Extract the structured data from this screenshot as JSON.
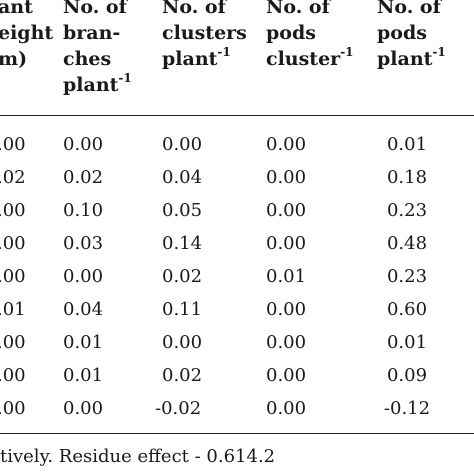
{
  "table": {
    "headers": [
      {
        "lines": [
          "ant",
          "eight",
          "m)"
        ],
        "sup": [
          "",
          "",
          ""
        ]
      },
      {
        "lines": [
          "No. of",
          "bran-",
          "ches",
          "plant"
        ],
        "sup": [
          "",
          "",
          "",
          "-1"
        ]
      },
      {
        "lines": [
          "No. of",
          "clusters",
          "plant"
        ],
        "sup": [
          "",
          "",
          "-1"
        ]
      },
      {
        "lines": [
          "No. of",
          "pods",
          "cluster"
        ],
        "sup": [
          "",
          "",
          "-1"
        ]
      },
      {
        "lines": [
          "No. of",
          "pods",
          "plant"
        ],
        "sup": [
          "",
          "",
          "-1"
        ]
      }
    ],
    "rows": [
      [
        ".00",
        "0.00",
        "0.00",
        "0.00",
        "0.01"
      ],
      [
        ".02",
        "0.02",
        "0.04",
        "0.00",
        "0.18"
      ],
      [
        ".00",
        "0.10",
        "0.05",
        "0.00",
        "0.23"
      ],
      [
        ".00",
        "0.03",
        "0.14",
        "0.00",
        "0.48"
      ],
      [
        ".00",
        "0.00",
        "0.02",
        "0.01",
        "0.23"
      ],
      [
        ".01",
        "0.04",
        "0.11",
        "0.00",
        "0.60"
      ],
      [
        ".00",
        "0.01",
        "0.00",
        "0.00",
        "0.01"
      ],
      [
        ".00",
        "0.01",
        "0.02",
        "0.00",
        "0.09"
      ],
      [
        ".00",
        "0.00",
        "-0.02",
        "0.00",
        "-0.12"
      ]
    ]
  },
  "footnote": "tively. Residue effect - 0.614.2"
}
